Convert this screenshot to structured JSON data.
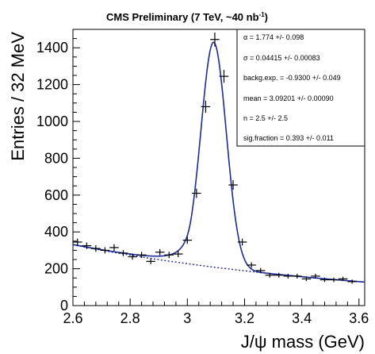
{
  "chart_data": {
    "type": "scatter",
    "title": "CMS Preliminary (7 TeV, ~40 nb",
    "title_superscript": "-1",
    "title_suffix": ")",
    "xlabel": "J/ψ mass (GeV)",
    "ylabel": "Entries / 32 MeV",
    "xlim": [
      2.6,
      3.62
    ],
    "ylim": [
      0,
      1500
    ],
    "x_ticks": [
      "2.6",
      "2.8",
      "3",
      "3.2",
      "3.4",
      "3.6"
    ],
    "y_ticks": [
      "0",
      "200",
      "400",
      "600",
      "800",
      "1000",
      "1200",
      "1400"
    ],
    "grid": false,
    "series": [
      {
        "kind": "data-points-with-errors",
        "x": [
          2.616,
          2.648,
          2.68,
          2.712,
          2.744,
          2.776,
          2.808,
          2.84,
          2.872,
          2.904,
          2.936,
          2.968,
          3.0,
          3.032,
          3.064,
          3.096,
          3.128,
          3.16,
          3.192,
          3.224,
          3.256,
          3.288,
          3.32,
          3.352,
          3.384,
          3.416,
          3.448,
          3.48,
          3.512,
          3.544,
          3.576
        ],
        "y": [
          345,
          325,
          310,
          300,
          315,
          285,
          265,
          275,
          240,
          290,
          275,
          280,
          355,
          610,
          1080,
          1445,
          1245,
          655,
          345,
          220,
          190,
          165,
          165,
          160,
          160,
          145,
          160,
          140,
          140,
          145,
          130
        ],
        "yerr": [
          19,
          18,
          18,
          17,
          18,
          17,
          16,
          17,
          15,
          17,
          17,
          17,
          19,
          25,
          33,
          38,
          35,
          26,
          19,
          15,
          14,
          13,
          13,
          13,
          13,
          12,
          13,
          12,
          12,
          12,
          11
        ]
      },
      {
        "kind": "total-fit-curve",
        "color": "#1c2a9c"
      },
      {
        "kind": "background-fit-dashed",
        "color": "#1c2a9c"
      }
    ],
    "fit": {
      "alpha": 1.774,
      "sigma": 0.04415,
      "backg_exp": -0.93,
      "mean": 3.09201,
      "n": 2.5,
      "sig_fraction": 0.393
    },
    "legend_position": "top-right"
  },
  "fit_box": {
    "alpha_line": "α = 1.774 +/- 0.098",
    "sigma_line": "σ = 0.04415 +/- 0.00083",
    "backg_line": "backg.exp. = -0.9300 +/- 0.049",
    "mean_line": "mean = 3.09201 +/- 0.00090",
    "n_line": "n = 2.5 +/- 2.5",
    "sigfrac_line": "sig.fraction = 0.393 +/- 0.011"
  },
  "colors": {
    "curve": "#1c2a9c",
    "points": "#000000",
    "frame": "#000000"
  }
}
